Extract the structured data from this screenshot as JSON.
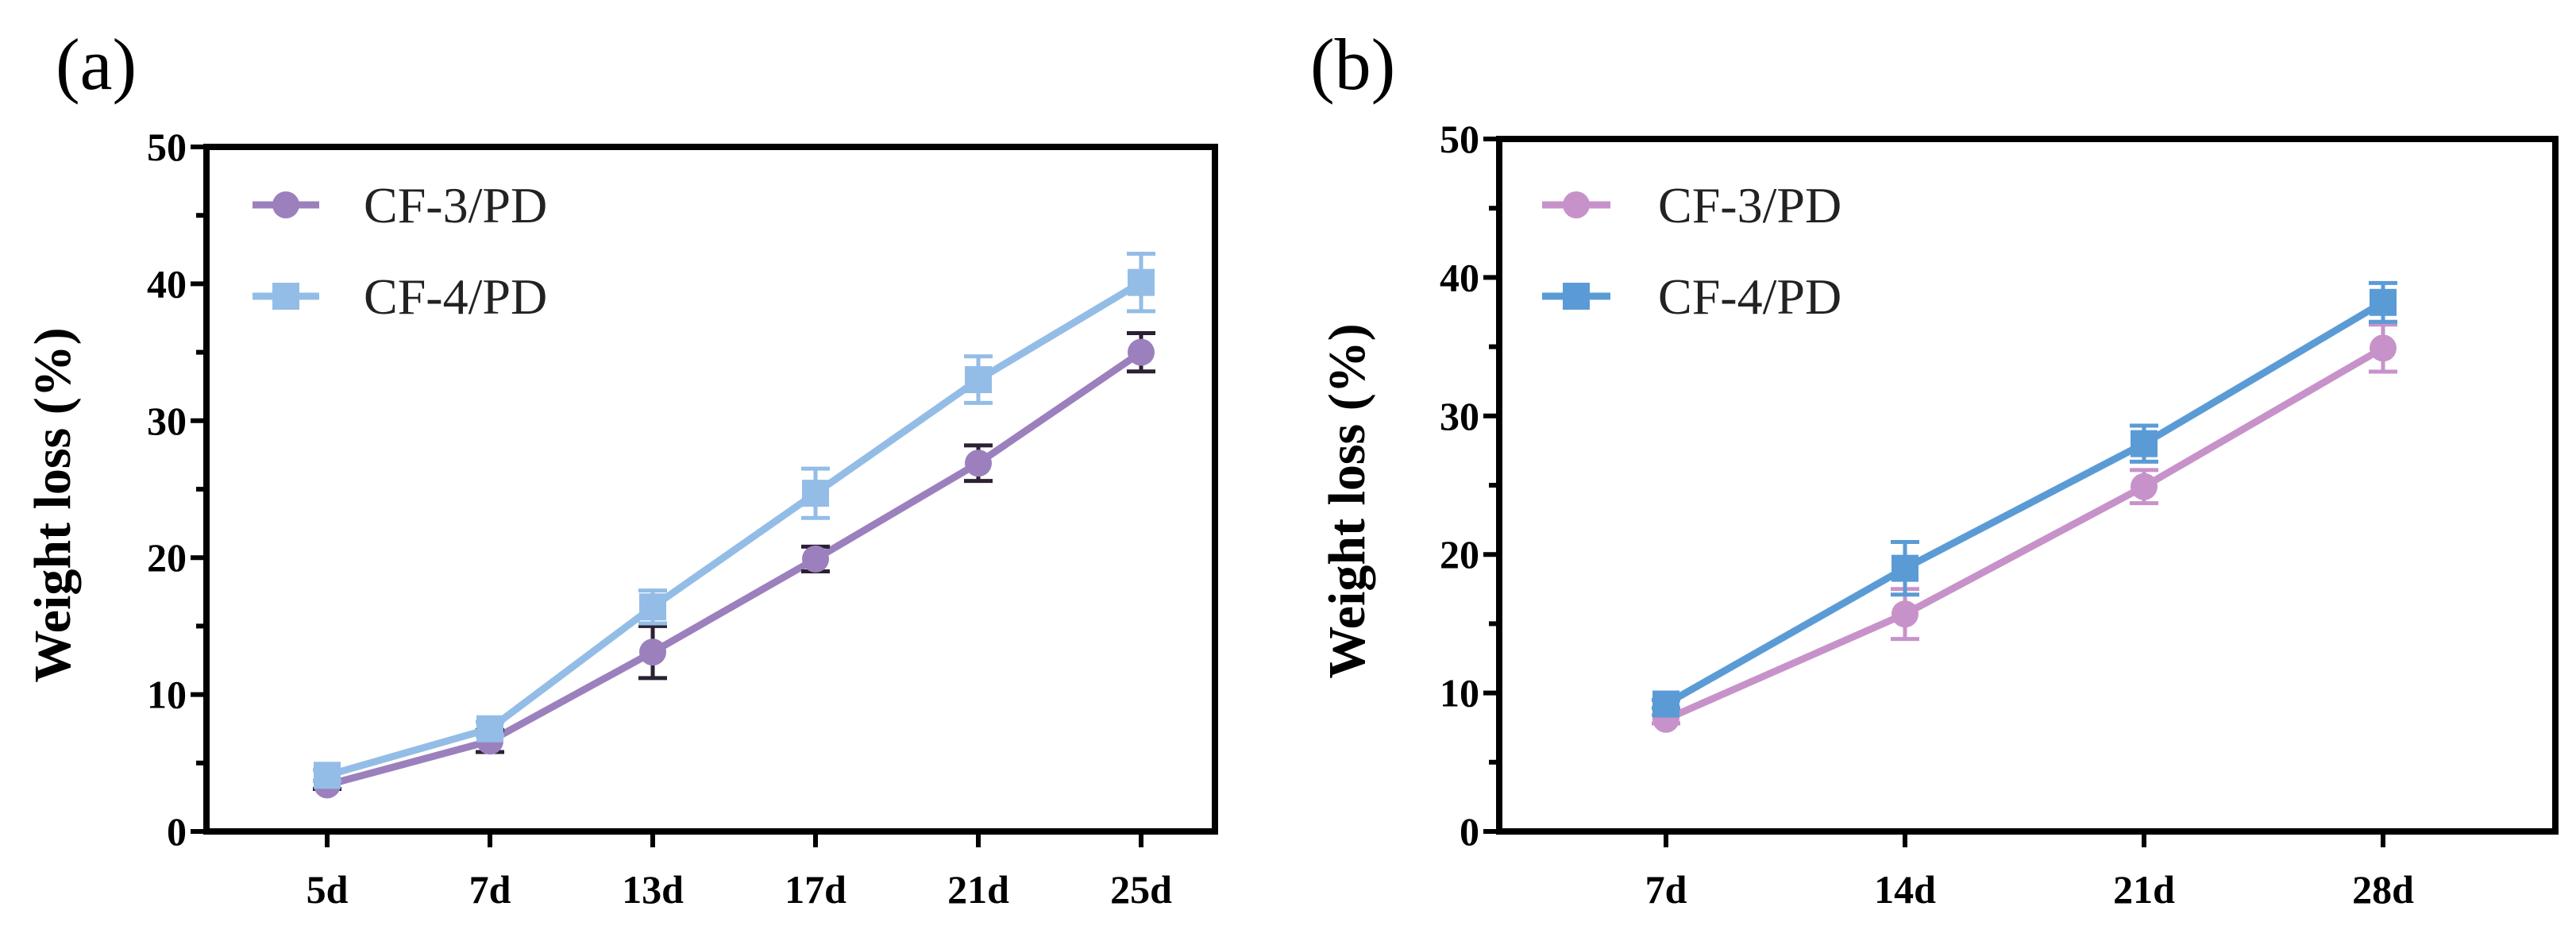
{
  "chart_data": [
    {
      "type": "line",
      "panel": "(a)",
      "xlabel": "",
      "ylabel": "Weight loss (%)",
      "ylim": [
        0,
        50
      ],
      "yticks": [
        0,
        10,
        20,
        30,
        40,
        50
      ],
      "categories": [
        "5d",
        "7d",
        "13d",
        "17d",
        "21d",
        "25d"
      ],
      "legend_position": "top-left",
      "series": [
        {
          "name": "CF-3/PD",
          "marker": "circle",
          "color": "#9b80bd",
          "error_color": "#2b2133",
          "values": [
            3.4,
            6.6,
            13.1,
            19.9,
            26.9,
            35.0
          ],
          "errors": [
            0.3,
            0.8,
            1.9,
            0.9,
            1.3,
            1.4
          ]
        },
        {
          "name": "CF-4/PD",
          "marker": "square",
          "color": "#93bde6",
          "error_color": "#93bde6",
          "values": [
            4.1,
            7.5,
            16.4,
            24.7,
            33.0,
            40.1
          ],
          "errors": [
            0.4,
            0.5,
            1.2,
            1.8,
            1.7,
            2.1
          ]
        }
      ]
    },
    {
      "type": "line",
      "panel": "(b)",
      "xlabel": "",
      "ylabel": "Weight loss (%)",
      "ylim": [
        0,
        50
      ],
      "yticks": [
        0,
        10,
        20,
        30,
        40,
        50
      ],
      "categories": [
        "7d",
        "14d",
        "21d",
        "28d"
      ],
      "legend_position": "top-left",
      "series": [
        {
          "name": "CF-3/PD",
          "marker": "circle",
          "color": "#c792c9",
          "error_color": "#c792c9",
          "values": [
            8.1,
            15.7,
            24.9,
            34.9
          ],
          "errors": [
            0.3,
            1.8,
            1.2,
            1.7
          ]
        },
        {
          "name": "CF-4/PD",
          "marker": "square",
          "color": "#5b9bd5",
          "error_color": "#5b9bd5",
          "values": [
            9.2,
            19.0,
            28.0,
            38.2
          ],
          "errors": [
            0.3,
            1.9,
            1.3,
            1.4
          ]
        }
      ]
    }
  ]
}
